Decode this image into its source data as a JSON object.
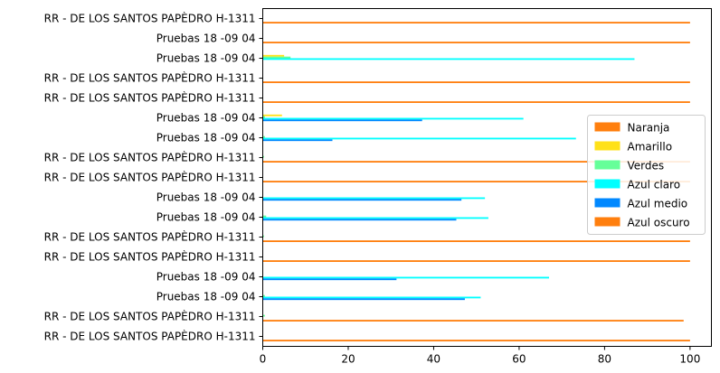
{
  "chart_data": {
    "type": "bar",
    "orientation": "horizontal",
    "categories": [
      "RR - DE LOS SANTOS PAPÈDRO H-1311",
      "RR - DE LOS SANTOS PAPÈDRO H-1311",
      "Pruebas 18 -09 04",
      "Pruebas 18 -09 04",
      "RR - DE LOS SANTOS PAPÈDRO H-1311",
      "RR - DE LOS SANTOS PAPÈDRO H-1311",
      "Pruebas 18 -09 04",
      "Pruebas 18 -09 04",
      "RR - DE LOS SANTOS PAPÈDRO H-1311",
      "RR - DE LOS SANTOS PAPÈDRO H-1311",
      "Pruebas 18 -09 04",
      "Pruebas 18 -09 04",
      "RR - DE LOS SANTOS PAPÈDRO H-1311",
      "RR - DE LOS SANTOS PAPÈDRO H-1311",
      "Pruebas 18 -09 04",
      "Pruebas 18 -09 04",
      "RR - DE LOS SANTOS PAPÈDRO H-1311"
    ],
    "series": [
      {
        "name": "Naranja",
        "color": "#ff7f0e",
        "values": [
          0,
          0,
          0,
          0,
          0,
          0,
          0,
          0,
          0,
          0,
          0,
          0,
          0,
          0,
          0,
          0,
          0
        ]
      },
      {
        "name": "Amarillo",
        "color": "#ffe119",
        "values": [
          0,
          0,
          0,
          0,
          0,
          0,
          0,
          0,
          0,
          0,
          0,
          4.5,
          0,
          0,
          5,
          0,
          0
        ]
      },
      {
        "name": "Verdes",
        "color": "#66ff99",
        "values": [
          0,
          0.5,
          0.5,
          0,
          0,
          0.3,
          0.8,
          0,
          0,
          0.3,
          0.5,
          0.5,
          0,
          0,
          6.5,
          0,
          0
        ]
      },
      {
        "name": "Azul claro",
        "color": "#00ffff",
        "values": [
          0,
          0,
          51,
          67,
          0,
          0,
          52.8,
          52,
          0,
          0,
          73.3,
          61,
          0,
          0,
          87,
          0,
          0
        ]
      },
      {
        "name": "Azul medio",
        "color": "#0088ff",
        "values": [
          0,
          0,
          47.3,
          31.3,
          0,
          0,
          45.3,
          46.5,
          0,
          0,
          16.3,
          37.3,
          0,
          0,
          0,
          0,
          0
        ]
      },
      {
        "name": "Azul oscuro",
        "color": "#ff7f0e",
        "values": [
          100,
          98.5,
          0,
          0,
          100,
          100,
          0,
          0,
          100,
          100,
          0,
          0,
          100,
          100,
          0,
          100,
          100
        ]
      }
    ],
    "xticks": [
      "0",
      "20",
      "40",
      "60",
      "80",
      "100"
    ],
    "xlim": [
      0,
      105
    ],
    "title": "",
    "xlabel": "",
    "ylabel": "",
    "legend_position": "center-right",
    "grid": false
  }
}
